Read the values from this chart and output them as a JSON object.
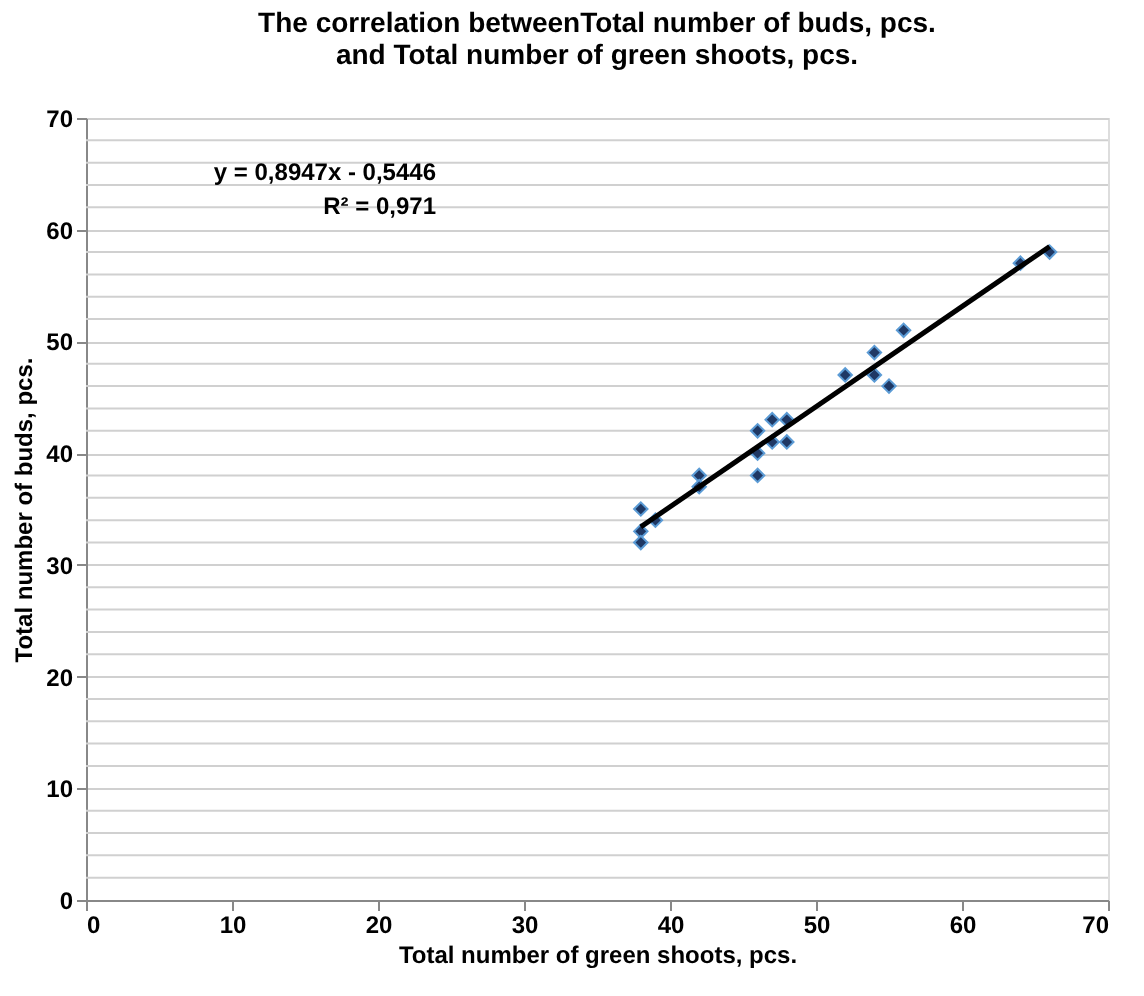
{
  "chart_data": {
    "type": "scatter",
    "title": "The correlation betweenTotal number of buds, pcs.\nand Total number of green shoots, pcs.",
    "xlabel": "Total number of green shoots, pcs.",
    "ylabel": "Total number of buds, pcs.",
    "annotations": [
      "y = 0,8947x - 0,5446",
      "R² = 0,971"
    ],
    "series": [
      {
        "type": "scatter",
        "color": "#1f3864",
        "marker": "diamond",
        "x": [
          38,
          38,
          38,
          39,
          42,
          42,
          46,
          46,
          46,
          47,
          47,
          48,
          48,
          52,
          54,
          54,
          55,
          56,
          64,
          66
        ],
        "values": [
          35,
          33,
          32,
          34,
          38,
          37,
          42,
          40,
          38,
          41,
          43,
          41,
          43,
          47,
          49,
          47,
          46,
          51,
          57,
          58
        ]
      },
      {
        "type": "line",
        "color": "#000000",
        "x": [
          38,
          66
        ],
        "values": [
          33.4,
          58.5
        ],
        "line_style": "solid"
      }
    ],
    "xlim": [
      0,
      70
    ],
    "xticks": [
      0,
      10,
      20,
      30,
      40,
      50,
      60,
      70
    ],
    "ylim": [
      0,
      70
    ],
    "yticks": [
      0,
      {
        "value": 2,
        "label": null
      },
      {
        "value": 4,
        "label": null
      },
      {
        "value": 6,
        "label": null
      },
      {
        "value": 8,
        "label": null
      },
      10,
      {
        "value": 12,
        "label": null
      },
      {
        "value": 14,
        "label": null
      },
      {
        "value": 16,
        "label": null
      },
      {
        "value": 18,
        "label": null
      },
      20,
      {
        "value": 22,
        "label": null
      },
      {
        "value": 24,
        "label": null
      },
      {
        "value": 26,
        "label": null
      },
      {
        "value": 28,
        "label": null
      },
      30,
      {
        "value": 32,
        "label": null
      },
      {
        "value": 34,
        "label": null
      },
      {
        "value": 36,
        "label": null
      },
      {
        "value": 38,
        "label": null
      },
      40,
      {
        "value": 42,
        "label": null
      },
      {
        "value": 44,
        "label": null
      },
      {
        "value": 46,
        "label": null
      },
      {
        "value": 48,
        "label": null
      },
      50,
      {
        "value": 52,
        "label": null
      },
      {
        "value": 54,
        "label": null
      },
      {
        "value": 56,
        "label": null
      },
      {
        "value": 58,
        "label": null
      },
      60,
      {
        "value": 62,
        "label": null
      },
      {
        "value": 64,
        "label": null
      },
      {
        "value": 66,
        "label": null
      },
      {
        "value": 68,
        "label": null
      },
      70
    ],
    "grid": "y"
  }
}
